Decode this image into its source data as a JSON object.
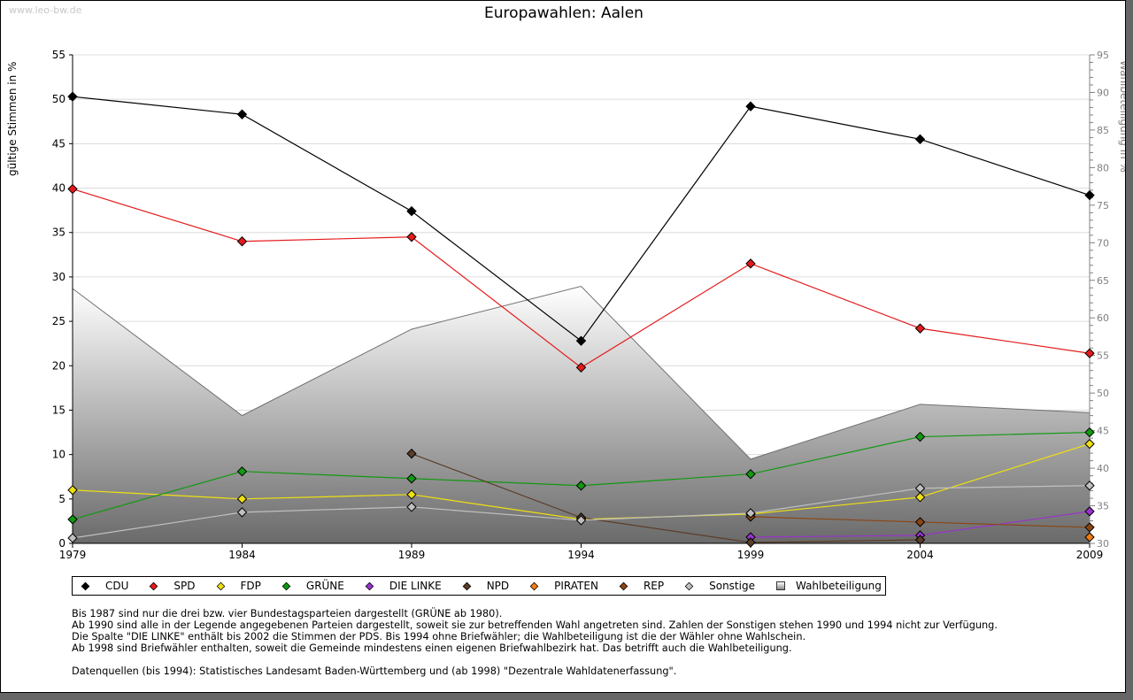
{
  "watermark": "www.leo-bw.de",
  "chart_data": {
    "type": "line",
    "title": "Europawahlen: Aalen",
    "x": [
      "1979",
      "1984",
      "1989",
      "1994",
      "1999",
      "2004",
      "2009"
    ],
    "ylabel": "gültige Stimmen in %",
    "y2label": "Wahlbeteiligung in %",
    "ylim": [
      0,
      55
    ],
    "y2lim": [
      30,
      95
    ],
    "yticks": [
      "0",
      "5",
      "10",
      "15",
      "20",
      "25",
      "30",
      "35",
      "40",
      "45",
      "50",
      "55"
    ],
    "y2ticks": [
      "30",
      "35",
      "40",
      "45",
      "50",
      "55",
      "60",
      "65",
      "70",
      "75",
      "80",
      "85",
      "90",
      "95"
    ],
    "grid": true,
    "legend_position": "bottom",
    "series": [
      {
        "name": "CDU",
        "color": "#000000",
        "values": [
          50.3,
          48.3,
          37.4,
          22.8,
          49.2,
          45.5,
          39.2
        ]
      },
      {
        "name": "SPD",
        "color": "#e41a1c",
        "values": [
          39.9,
          34.0,
          34.5,
          19.8,
          31.5,
          24.2,
          21.4
        ]
      },
      {
        "name": "FDP",
        "color": "#f0e010",
        "values": [
          6.0,
          5.0,
          5.5,
          2.7,
          3.3,
          5.2,
          11.2
        ]
      },
      {
        "name": "GRÜNE",
        "color": "#119911",
        "values": [
          2.7,
          8.1,
          7.3,
          6.5,
          7.8,
          12.0,
          12.5
        ]
      },
      {
        "name": "DIE LINKE",
        "color": "#9933cc",
        "values": [
          null,
          null,
          null,
          null,
          0.7,
          0.9,
          3.6
        ]
      },
      {
        "name": "NPD",
        "color": "#5c3d28",
        "values": [
          null,
          null,
          10.1,
          2.9,
          0.1,
          0.4,
          null
        ]
      },
      {
        "name": "PIRATEN",
        "color": "#f07d10",
        "values": [
          null,
          null,
          null,
          null,
          null,
          null,
          0.7
        ]
      },
      {
        "name": "REP",
        "color": "#8b4513",
        "values": [
          null,
          null,
          null,
          null,
          3.0,
          2.4,
          1.8
        ]
      },
      {
        "name": "Sonstige",
        "color": "#c0c0c0",
        "values": [
          0.6,
          3.5,
          4.1,
          2.6,
          3.4,
          6.2,
          6.5
        ]
      }
    ],
    "area_series": {
      "name": "Wahlbeteiligung",
      "axis": "right",
      "values": [
        63.9,
        47.0,
        58.5,
        64.2,
        41.2,
        48.5,
        47.4
      ]
    }
  },
  "legend": [
    {
      "label": "CDU",
      "color": "#000000",
      "shape": "diamond"
    },
    {
      "label": "SPD",
      "color": "#e41a1c",
      "shape": "diamond"
    },
    {
      "label": "FDP",
      "color": "#f0e010",
      "shape": "diamond"
    },
    {
      "label": "GRÜNE",
      "color": "#119911",
      "shape": "diamond"
    },
    {
      "label": "DIE LINKE",
      "color": "#9933cc",
      "shape": "diamond"
    },
    {
      "label": "NPD",
      "color": "#5c3d28",
      "shape": "diamond"
    },
    {
      "label": "PIRATEN",
      "color": "#f07d10",
      "shape": "diamond"
    },
    {
      "label": "REP",
      "color": "#8b4513",
      "shape": "diamond"
    },
    {
      "label": "Sonstige",
      "color": "#c0c0c0",
      "shape": "diamond"
    },
    {
      "label": "Wahlbeteiligung",
      "color": "#aaaaaa",
      "shape": "square"
    }
  ],
  "notes": [
    "Bis 1987 sind nur die drei bzw. vier Bundestagsparteien dargestellt (GRÜNE ab 1980).",
    "Ab 1990 sind alle in der Legende angegebenen Parteien dargestellt, soweit sie zur betreffenden Wahl angetreten sind. Zahlen der Sonstigen stehen 1990 und 1994 nicht zur Verfügung.",
    "Die Spalte \"DIE LINKE\" enthält bis 2002 die Stimmen der PDS. Bis 1994 ohne Briefwähler; die Wahlbeteiligung ist die der Wähler ohne Wahlschein.",
    "Ab 1998 sind Briefwähler enthalten, soweit die Gemeinde mindestens einen eigenen Briefwahlbezirk hat. Das betrifft auch die Wahlbeteiligung.",
    "",
    "Datenquellen (bis 1994): Statistisches Landesamt Baden-Württemberg und (ab 1998) \"Dezentrale Wahldatenerfassung\"."
  ]
}
